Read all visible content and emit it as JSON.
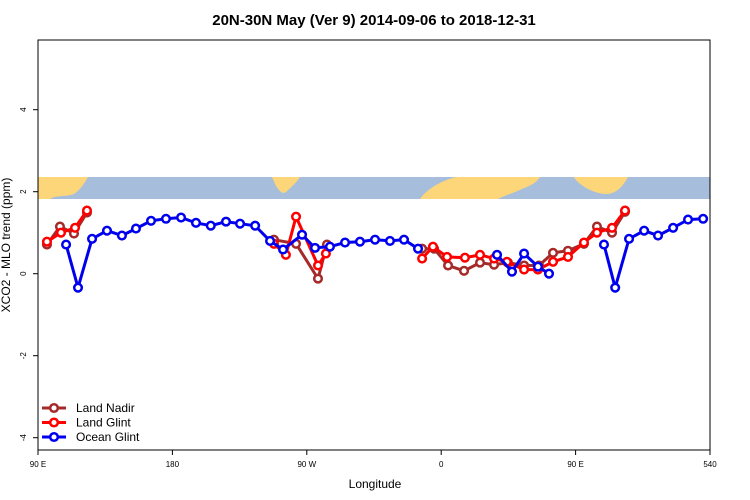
{
  "chart_data": {
    "type": "line",
    "title": "20N-30N May (Ver 9)   2014-09-06 to 2018-12-31",
    "xlabel": "Longitude",
    "ylabel": "XCO2 - MLO trend (ppm)",
    "xlim": [
      90,
      540
    ],
    "ylim": [
      -4.3,
      5.7
    ],
    "xticks": [
      {
        "value": 90,
        "label": "90 E"
      },
      180,
      {
        "value": 270,
        "label": "90 W"
      },
      {
        "value": 360,
        "label": "0"
      },
      {
        "value": 450,
        "label": "90 E"
      },
      540
    ],
    "yticks": [
      -4,
      -2,
      0,
      2,
      4
    ],
    "legend": "bottom-left",
    "series": [
      {
        "name": "Land Nadir",
        "color": "#a52a2a",
        "x": [
          96,
          104.7,
          114.1,
          122.8,
          null,
          248,
          262.8,
          277.5,
          283.5,
          null,
          347.2,
          355.2,
          364.6,
          375.3,
          386,
          395.4,
          404.7,
          415.5,
          425.5,
          434.9,
          444.9,
          455.6,
          464.3,
          474.4,
          483.1
        ],
        "values": [
          0.71,
          1.15,
          0.98,
          1.49,
          null,
          0.83,
          0.73,
          -0.12,
          0.71,
          null,
          0.61,
          0.61,
          0.2,
          0.07,
          0.27,
          0.22,
          0.27,
          0.2,
          0.2,
          0.51,
          0.56,
          0.73,
          1.15,
          1.0,
          1.51
        ]
      },
      {
        "name": "Land Glint",
        "color": "#ff0000",
        "x": [
          96,
          105.4,
          114.8,
          122.8,
          null,
          248,
          256,
          262.8,
          277.5,
          282.8,
          null,
          347.2,
          354.5,
          363.9,
          375.9,
          386,
          395.4,
          404,
          415.5,
          424.8,
          434.9,
          444.9,
          455.6,
          464.3,
          474.4,
          483.1
        ],
        "values": [
          0.78,
          1.0,
          1.12,
          1.54,
          null,
          0.73,
          0.46,
          1.39,
          0.2,
          0.49,
          null,
          0.37,
          0.66,
          0.41,
          0.39,
          0.46,
          0.37,
          0.29,
          0.1,
          0.1,
          0.29,
          0.41,
          0.76,
          1.0,
          1.12,
          1.54
        ]
      },
      {
        "name": "Ocean Glint",
        "color": "#0000ee",
        "x": [
          108.8,
          116.8,
          126.2,
          136.2,
          146.2,
          155.6,
          165.7,
          175.7,
          185.8,
          195.8,
          205.7,
          215.9,
          225.3,
          235.4,
          245.4,
          254.1,
          266.8,
          275.5,
          285.5,
          295.6,
          305.6,
          315.7,
          325.7,
          335.1,
          344.5,
          null,
          397.4,
          407.4,
          415.5,
          424.8,
          432.2,
          null,
          469,
          476.5,
          485.8,
          495.9,
          505.2,
          515.3,
          525.3,
          535.4
        ],
        "values": [
          0.71,
          -0.34,
          0.85,
          1.05,
          0.93,
          1.1,
          1.29,
          1.34,
          1.37,
          1.24,
          1.17,
          1.27,
          1.22,
          1.17,
          0.8,
          0.59,
          0.95,
          0.63,
          0.66,
          0.76,
          0.78,
          0.83,
          0.8,
          0.83,
          0.61,
          null,
          0.46,
          0.05,
          0.49,
          0.17,
          0.0,
          null,
          0.71,
          -0.34,
          0.85,
          1.05,
          0.93,
          1.12,
          1.32,
          1.34
        ]
      }
    ]
  }
}
